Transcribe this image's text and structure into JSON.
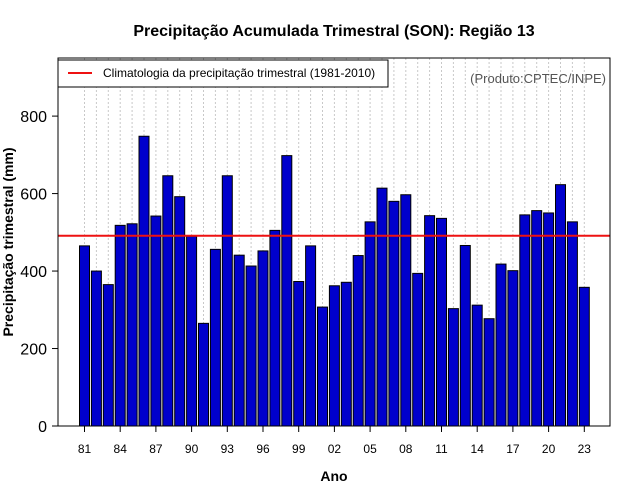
{
  "chart_data": {
    "type": "bar",
    "title": "Precipitação Acumulada Trimestral (SON): Região 13",
    "xlabel": "Ano",
    "ylabel": "Precipitação trimestral (mm)",
    "credit": "(Produto:CPTEC/INPE)",
    "legend": {
      "position": "top-left",
      "entries": [
        {
          "label": "Climatologia da precipitação trimestral (1981-2010)",
          "color": "#ee1111"
        }
      ]
    },
    "ylim": [
      0,
      950
    ],
    "yticks": [
      0,
      200,
      400,
      600,
      800
    ],
    "grid": "vertical dotted",
    "bar_color": "#0000cc",
    "bar_edge": "#000000",
    "climatology": 491,
    "categories": [
      "81",
      "82",
      "83",
      "84",
      "85",
      "86",
      "87",
      "88",
      "89",
      "90",
      "91",
      "92",
      "93",
      "94",
      "95",
      "96",
      "97",
      "98",
      "99",
      "00",
      "01",
      "02",
      "03",
      "04",
      "05",
      "06",
      "07",
      "08",
      "09",
      "10",
      "11",
      "12",
      "13",
      "14",
      "15",
      "16",
      "17",
      "18",
      "19",
      "20",
      "21",
      "22",
      "23"
    ],
    "xtick_labels": [
      "81",
      "84",
      "87",
      "90",
      "93",
      "96",
      "99",
      "02",
      "05",
      "08",
      "11",
      "14",
      "17",
      "20",
      "23"
    ],
    "values": [
      465,
      400,
      365,
      518,
      522,
      748,
      542,
      646,
      592,
      490,
      265,
      456,
      646,
      441,
      413,
      452,
      505,
      698,
      373,
      465,
      307,
      362,
      371,
      440,
      527,
      614,
      580,
      597,
      394,
      543,
      536,
      303,
      466,
      312,
      277,
      418,
      401,
      545,
      556,
      550,
      623,
      527,
      358
    ]
  }
}
